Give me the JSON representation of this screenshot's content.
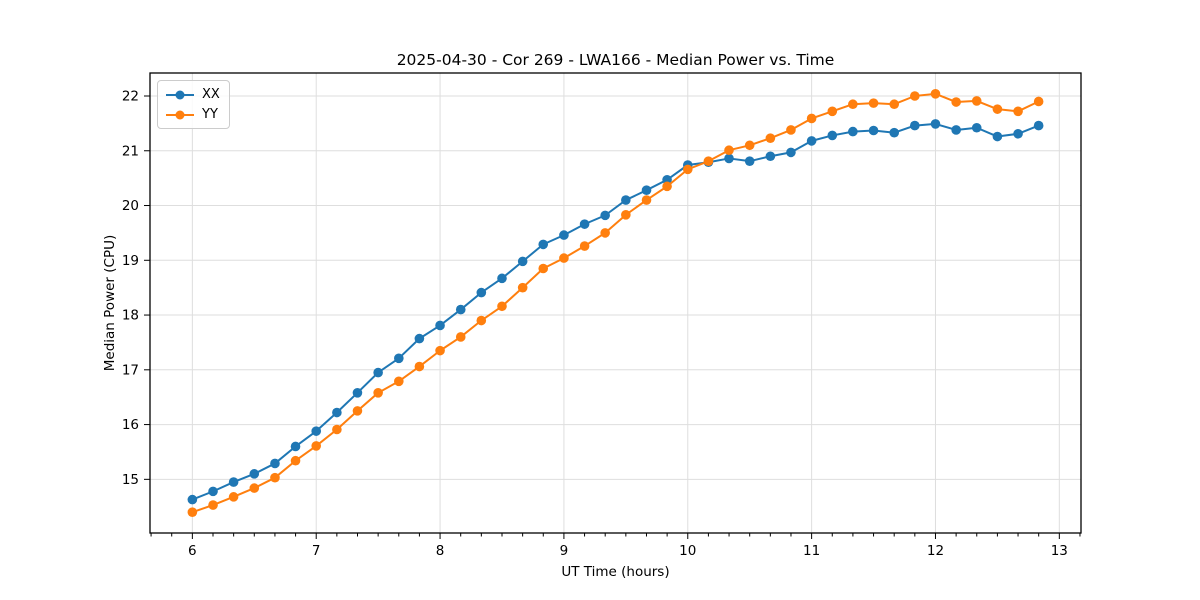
{
  "figure": {
    "title": "2025-04-30 - Cor 269 - LWA166 - Median Power vs. Time",
    "xlabel": "UT Time (hours)",
    "ylabel": "Median Power (CPU)"
  },
  "legend": {
    "items": [
      {
        "label": "XX",
        "color": "#1f77b4"
      },
      {
        "label": "YY",
        "color": "#ff7f0e"
      }
    ]
  },
  "chart_data": {
    "type": "line",
    "title": "2025-04-30 - Cor 269 - LWA166 - Median Power vs. Time",
    "xlabel": "UT Time (hours)",
    "ylabel": "Median Power (CPU)",
    "x": [
      6.0,
      6.167,
      6.333,
      6.5,
      6.667,
      6.833,
      7.0,
      7.167,
      7.333,
      7.5,
      7.667,
      7.833,
      8.0,
      8.167,
      8.333,
      8.5,
      8.667,
      8.833,
      9.0,
      9.167,
      9.333,
      9.5,
      9.667,
      9.833,
      10.0,
      10.167,
      10.333,
      10.5,
      10.667,
      10.833,
      11.0,
      11.167,
      11.333,
      11.5,
      11.667,
      11.833,
      12.0,
      12.167,
      12.333,
      12.5,
      12.667,
      12.833
    ],
    "series": [
      {
        "name": "XX",
        "color": "#1f77b4",
        "marker": "circle",
        "values": [
          14.63,
          14.78,
          14.95,
          15.1,
          15.29,
          15.6,
          15.88,
          16.22,
          16.58,
          16.95,
          17.21,
          17.57,
          17.81,
          18.1,
          18.41,
          18.67,
          18.98,
          19.29,
          19.46,
          19.66,
          19.82,
          20.1,
          20.28,
          20.47,
          20.74,
          20.79,
          20.86,
          20.81,
          20.9,
          20.97,
          21.18,
          21.28,
          21.35,
          21.37,
          21.33,
          21.46,
          21.49,
          21.38,
          21.42,
          21.26,
          21.31,
          21.46
        ]
      },
      {
        "name": "YY",
        "color": "#ff7f0e",
        "marker": "circle",
        "values": [
          14.4,
          14.53,
          14.68,
          14.84,
          15.03,
          15.34,
          15.61,
          15.91,
          16.25,
          16.58,
          16.79,
          17.06,
          17.35,
          17.6,
          17.9,
          18.16,
          18.5,
          18.85,
          19.04,
          19.26,
          19.5,
          19.83,
          20.1,
          20.35,
          20.66,
          20.81,
          21.01,
          21.1,
          21.23,
          21.38,
          21.59,
          21.72,
          21.85,
          21.87,
          21.85,
          22.0,
          22.04,
          21.89,
          21.91,
          21.76,
          21.72,
          21.9
        ]
      }
    ],
    "xlim": [
      5.658,
      13.175
    ],
    "ylim": [
      14.02,
      22.42
    ],
    "xticks": [
      6,
      7,
      8,
      9,
      10,
      11,
      12,
      13
    ],
    "yticks": [
      15,
      16,
      17,
      18,
      19,
      20,
      21,
      22
    ],
    "x_minor_step": 0.1666667,
    "grid": "major",
    "grid_color": "#dedede",
    "legend_position": "upper-left",
    "background": "#ffffff"
  }
}
